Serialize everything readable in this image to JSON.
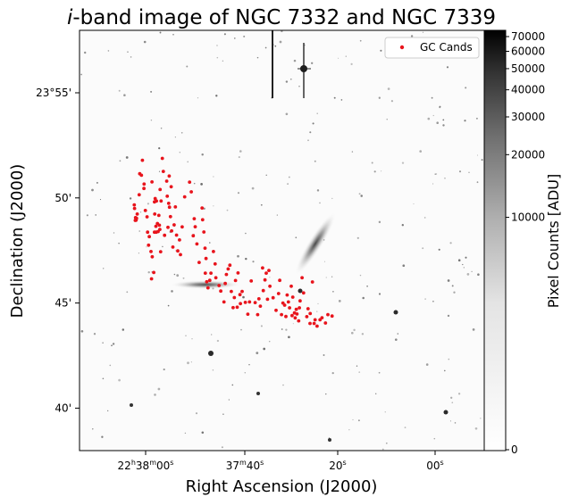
{
  "chart_data": {
    "type": "scatter",
    "title_italic": "i",
    "title_rest": "-band image of NGC 7332 and NGC 7339",
    "xlabel": "Right Ascension (J2000)",
    "ylabel": "Declination (J2000)",
    "colorbar_label": "Pixel Counts [ADU]",
    "legend": "GC Cands",
    "legend_position": "top-right",
    "marker_color": "#e8141c",
    "x_ticks": [
      {
        "h": "22",
        "hs": "h",
        "m": "38",
        "ms": "m",
        "s": "00",
        "ss": "s"
      },
      {
        "h": "",
        "hs": "",
        "m": "37",
        "ms": "m",
        "s": "40",
        "ss": "s"
      },
      {
        "h": "",
        "hs": "",
        "m": "",
        "ms": "",
        "s": "20",
        "ss": "s"
      },
      {
        "h": "",
        "hs": "",
        "m": "",
        "ms": "",
        "s": "00",
        "ss": "s"
      }
    ],
    "y_ticks": [
      "23°55'",
      "50'",
      "45'",
      "40'"
    ],
    "colorbar_ticks": [
      "70000",
      "60000",
      "50000",
      "40000",
      "30000",
      "20000",
      "10000",
      "0"
    ],
    "colorbar_values": [
      70000,
      60000,
      50000,
      40000,
      30000,
      20000,
      10000,
      0
    ],
    "axis_ra_seconds": [
      0,
      40,
      80,
      120
    ],
    "axis_dec_arcmin": [
      55,
      50,
      45,
      40
    ],
    "points": [
      [
        -0.17,
        49.67
      ],
      [
        -0.16,
        49.5
      ],
      [
        -0.13,
        48.93
      ],
      [
        -0.12,
        49.06
      ],
      [
        -0.1,
        48.94
      ],
      [
        -0.08,
        49.03
      ],
      [
        -0.05,
        49.23
      ],
      [
        0.03,
        50.15
      ],
      [
        0.05,
        51.15
      ],
      [
        0.12,
        51.08
      ],
      [
        0.16,
        51.79
      ],
      [
        0.22,
        50.45
      ],
      [
        0.23,
        50.66
      ],
      [
        0.28,
        49.4
      ],
      [
        0.35,
        49.1
      ],
      [
        0.37,
        48.37
      ],
      [
        0.41,
        47.75
      ],
      [
        0.44,
        48.16
      ],
      [
        0.51,
        47.45
      ],
      [
        0.53,
        46.15
      ],
      [
        0.55,
        50.76
      ],
      [
        0.56,
        47.2
      ],
      [
        0.62,
        46.45
      ],
      [
        0.65,
        48.37
      ],
      [
        0.65,
        49.81
      ],
      [
        0.66,
        49.23
      ],
      [
        0.68,
        49.97
      ],
      [
        0.71,
        48.65
      ],
      [
        0.72,
        48.37
      ],
      [
        0.73,
        49.85
      ],
      [
        0.77,
        48.78
      ],
      [
        0.8,
        48.4
      ],
      [
        0.83,
        49.17
      ],
      [
        0.85,
        48.7
      ],
      [
        0.87,
        48.5
      ],
      [
        0.88,
        50.4
      ],
      [
        0.9,
        47.44
      ],
      [
        0.92,
        49.85
      ],
      [
        0.97,
        51.88
      ],
      [
        1.01,
        51.26
      ],
      [
        1.06,
        48.22
      ],
      [
        1.15,
        50.8
      ],
      [
        1.17,
        50.08
      ],
      [
        1.2,
        48.6
      ],
      [
        1.23,
        49.74
      ],
      [
        1.25,
        51.04
      ],
      [
        1.26,
        49.56
      ],
      [
        1.3,
        49.11
      ],
      [
        1.33,
        50.53
      ],
      [
        1.35,
        48.43
      ],
      [
        1.4,
        47.66
      ],
      [
        1.45,
        48.72
      ],
      [
        1.5,
        49.57
      ],
      [
        1.55,
        48.23
      ],
      [
        1.6,
        47.48
      ],
      [
        1.67,
        48.0
      ],
      [
        1.71,
        47.3
      ],
      [
        1.78,
        48.62
      ],
      [
        1.88,
        50.05
      ],
      [
        2.08,
        50.75
      ],
      [
        2.15,
        50.29
      ],
      [
        2.23,
        48.2
      ],
      [
        2.27,
        49.01
      ],
      [
        2.31,
        48.63
      ],
      [
        2.38,
        47.81
      ],
      [
        2.47,
        46.93
      ],
      [
        2.59,
        49.52
      ],
      [
        2.61,
        48.96
      ],
      [
        2.66,
        48.38
      ],
      [
        2.71,
        47.61
      ],
      [
        2.72,
        46.42
      ],
      [
        2.75,
        47.12
      ],
      [
        2.78,
        46.01
      ],
      [
        2.83,
        45.72
      ],
      [
        2.9,
        46.08
      ],
      [
        2.95,
        46.42
      ],
      [
        3.05,
        47.45
      ],
      [
        3.12,
        46.86
      ],
      [
        3.15,
        46.2
      ],
      [
        3.28,
        45.83
      ],
      [
        3.35,
        45.57
      ],
      [
        3.48,
        45.05
      ],
      [
        3.53,
        45.93
      ],
      [
        3.58,
        46.36
      ],
      [
        3.65,
        46.62
      ],
      [
        3.72,
        46.8
      ],
      [
        3.78,
        45.55
      ],
      [
        3.85,
        44.78
      ],
      [
        3.9,
        45.26
      ],
      [
        3.95,
        46.07
      ],
      [
        4.02,
        44.8
      ],
      [
        4.05,
        46.43
      ],
      [
        4.13,
        45.4
      ],
      [
        4.15,
        44.97
      ],
      [
        4.22,
        45.55
      ],
      [
        4.35,
        45.03
      ],
      [
        4.45,
        44.47
      ],
      [
        4.52,
        45.05
      ],
      [
        4.59,
        46.05
      ],
      [
        4.75,
        45.02
      ],
      [
        4.85,
        44.45
      ],
      [
        4.9,
        45.2
      ],
      [
        4.96,
        44.85
      ],
      [
        5.05,
        46.67
      ],
      [
        5.08,
        45.59
      ],
      [
        5.15,
        46.1
      ],
      [
        5.2,
        46.42
      ],
      [
        5.25,
        45.18
      ],
      [
        5.31,
        46.55
      ],
      [
        5.35,
        45.8
      ],
      [
        5.48,
        45.25
      ],
      [
        5.6,
        44.65
      ],
      [
        5.7,
        45.45
      ],
      [
        5.75,
        46.08
      ],
      [
        5.82,
        44.45
      ],
      [
        5.88,
        45.0
      ],
      [
        5.95,
        44.9
      ],
      [
        6.0,
        44.36
      ],
      [
        6.05,
        45.38
      ],
      [
        6.1,
        45.05
      ],
      [
        6.15,
        44.77
      ],
      [
        6.22,
        45.8
      ],
      [
        6.25,
        44.4
      ],
      [
        6.28,
        45.28
      ],
      [
        6.35,
        44.53
      ],
      [
        6.38,
        44.29
      ],
      [
        6.42,
        44.7
      ],
      [
        6.45,
        44.48
      ],
      [
        6.52,
        44.15
      ],
      [
        6.55,
        44.77
      ],
      [
        6.58,
        45.1
      ],
      [
        6.66,
        46.2
      ],
      [
        6.72,
        45.48
      ],
      [
        6.85,
        44.35
      ],
      [
        6.9,
        44.73
      ],
      [
        6.98,
        44.03
      ],
      [
        6.99,
        44.5
      ],
      [
        7.08,
        46.0
      ],
      [
        7.15,
        44.03
      ],
      [
        7.19,
        44.2
      ],
      [
        7.27,
        43.9
      ],
      [
        7.39,
        44.2
      ],
      [
        7.47,
        44.3
      ],
      [
        7.61,
        44.05
      ],
      [
        7.71,
        44.45
      ],
      [
        7.88,
        44.38
      ]
    ]
  }
}
